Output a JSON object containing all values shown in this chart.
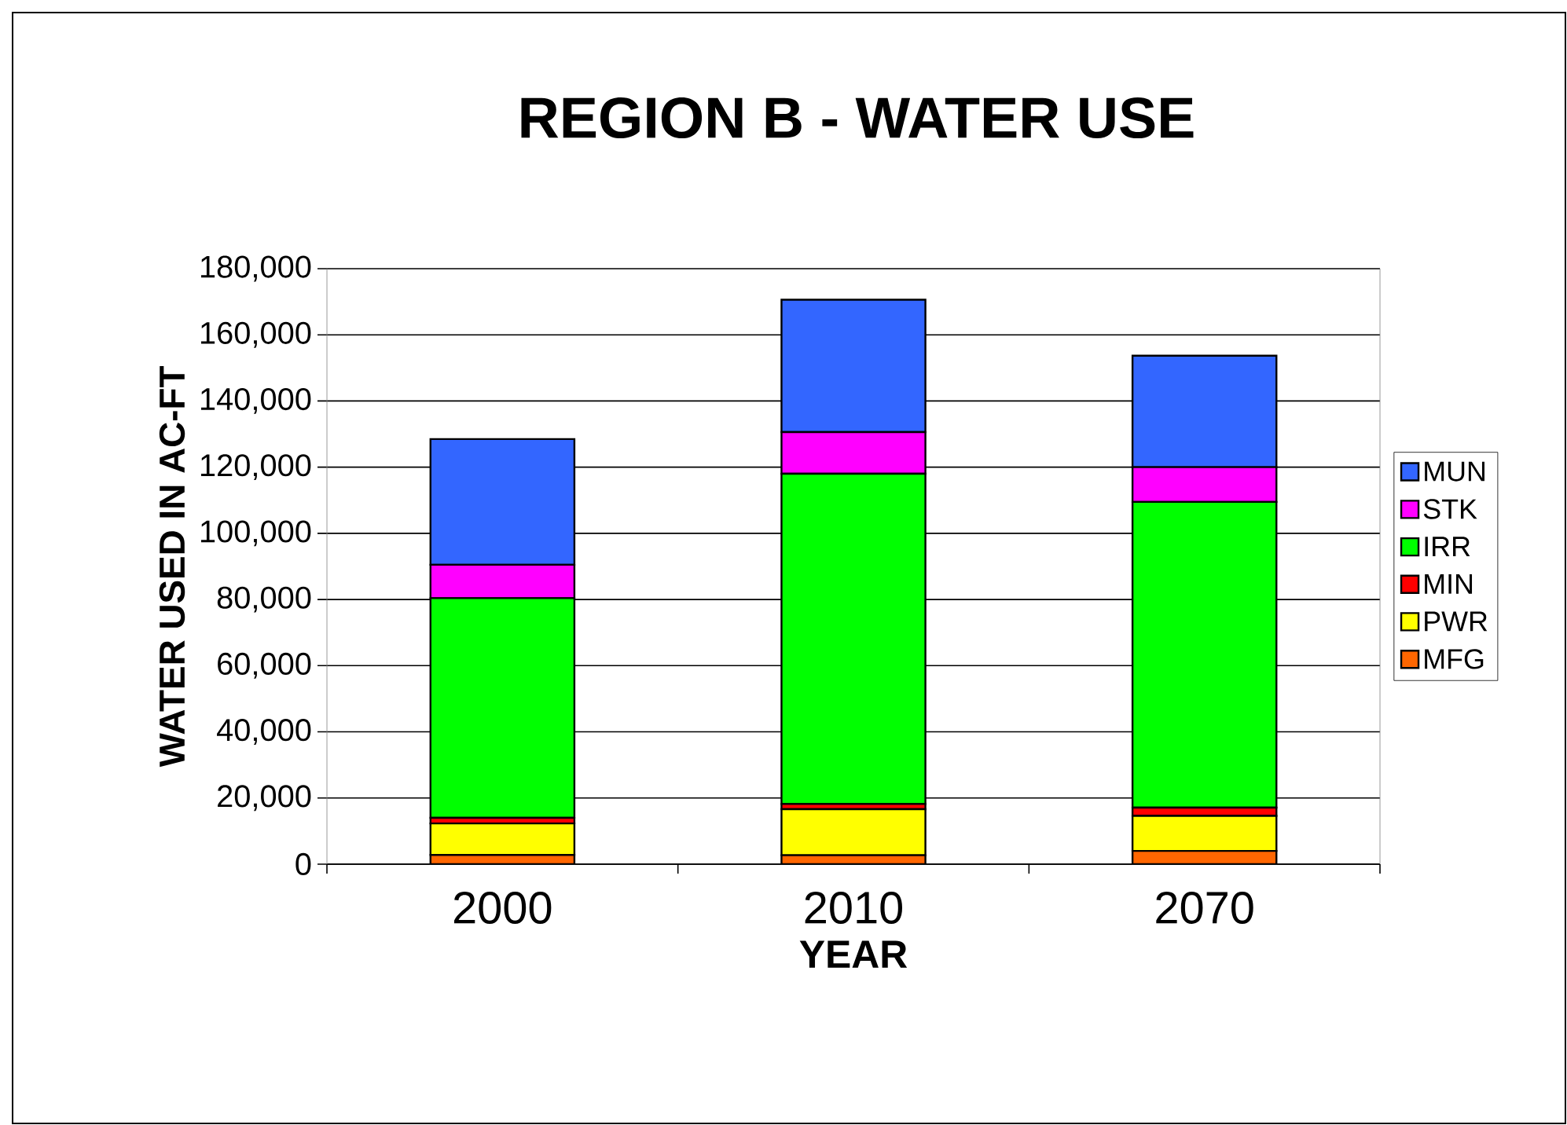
{
  "chart_data": {
    "type": "bar",
    "title": "REGION B - WATER USE",
    "xlabel": "YEAR",
    "ylabel": "WATER  USED IN AC-FT",
    "categories": [
      "2000",
      "2010",
      "2070"
    ],
    "series": [
      {
        "name": "MFG",
        "color": "#ff6600",
        "values": [
          2800,
          2700,
          4000
        ]
      },
      {
        "name": "PWR",
        "color": "#ffff00",
        "values": [
          9500,
          13900,
          10600
        ]
      },
      {
        "name": "MIN",
        "color": "#ff0000",
        "values": [
          1700,
          1600,
          2500
        ]
      },
      {
        "name": "IRR",
        "color": "#00ff00",
        "values": [
          66400,
          99800,
          92400
        ]
      },
      {
        "name": "STK",
        "color": "#ff00ff",
        "values": [
          10100,
          12600,
          10500
        ]
      },
      {
        "name": "MUN",
        "color": "#3366ff",
        "values": [
          38000,
          40000,
          33700
        ]
      }
    ],
    "stacked": true,
    "grid": "y",
    "legend": "right",
    "ylim": [
      0,
      180000
    ],
    "yticks": [
      {
        "value": 0,
        "label": "0"
      },
      {
        "value": 20000,
        "label": "20,000"
      },
      {
        "value": 40000,
        "label": "40,000"
      },
      {
        "value": 60000,
        "label": "60,000"
      },
      {
        "value": 80000,
        "label": "80,000"
      },
      {
        "value": 100000,
        "label": "100,000"
      },
      {
        "value": 120000,
        "label": "120,000"
      },
      {
        "value": 140000,
        "label": "140,000"
      },
      {
        "value": 160000,
        "label": "160,000"
      },
      {
        "value": 180000,
        "label": "180,000"
      }
    ]
  }
}
